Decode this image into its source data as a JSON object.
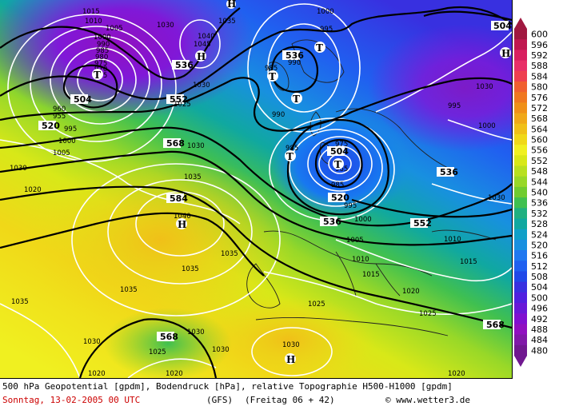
{
  "caption": {
    "line1": "500 hPa Geopotential [gpdm], Bodendruck [hPa], relative Topographie H500-H1000 [gpdm]",
    "date": "Sonntag, 13-02-2005  00 UTC",
    "model": "(GFS)",
    "forecast": "(Freitag 06 + 42)",
    "credit": "www.wetter3.de"
  },
  "legend": {
    "values": [
      "600",
      "596",
      "592",
      "588",
      "584",
      "580",
      "576",
      "572",
      "568",
      "564",
      "560",
      "556",
      "552",
      "548",
      "544",
      "540",
      "536",
      "532",
      "528",
      "524",
      "520",
      "516",
      "512",
      "508",
      "504",
      "500",
      "496",
      "492",
      "488",
      "484",
      "480"
    ],
    "colors": [
      "#a01840",
      "#c01850",
      "#d82060",
      "#e83068",
      "#ee4050",
      "#f06030",
      "#f07820",
      "#f09018",
      "#f0a818",
      "#f0c018",
      "#f0d818",
      "#f0f020",
      "#d8e818",
      "#b8e020",
      "#98d828",
      "#70cc30",
      "#40c050",
      "#20b080",
      "#10a8a0",
      "#10a0c8",
      "#1890e0",
      "#2078f0",
      "#2060f0",
      "#2048e8",
      "#3830e0",
      "#5020e0",
      "#6818d8",
      "#8010d0",
      "#9010c0",
      "#8018a8",
      "#701890"
    ]
  },
  "map": {
    "relative_topography_gpdm": [
      {
        "label": "504",
        "kind": "black"
      },
      {
        "label": "520",
        "kind": "black"
      },
      {
        "label": "536",
        "kind": "black"
      },
      {
        "label": "552",
        "kind": "black"
      },
      {
        "label": "568",
        "kind": "black"
      },
      {
        "label": "584",
        "kind": "black"
      },
      {
        "label": "568",
        "kind": "black"
      },
      {
        "label": "536",
        "kind": "black"
      },
      {
        "label": "504",
        "kind": "black"
      },
      {
        "label": "536",
        "kind": "black"
      },
      {
        "label": "536",
        "kind": "black"
      },
      {
        "label": "552",
        "kind": "black"
      },
      {
        "label": "568",
        "kind": "black"
      },
      {
        "label": "520",
        "kind": "black"
      },
      {
        "label": "504",
        "kind": "black"
      }
    ],
    "surface_pressure_hpa": [
      "1015",
      "1010",
      "1005",
      "1000",
      "990",
      "985",
      "980",
      "975",
      "970",
      "965",
      "960",
      "955",
      "995",
      "990",
      "1000",
      "1005",
      "1030",
      "1035",
      "1040",
      "1045",
      "1030",
      "1025",
      "1030",
      "1000",
      "995",
      "990",
      "985",
      "985",
      "975",
      "965",
      "985",
      "995",
      "1000",
      "1005",
      "1010",
      "1015",
      "1020",
      "1025",
      "1030",
      "1035",
      "1040",
      "1035",
      "1030",
      "1025",
      "1020",
      "1030",
      "1030",
      "1025",
      "1030",
      "1020",
      "1020",
      "1035",
      "1030",
      "1035",
      "1035",
      "1030",
      "1010",
      "1015",
      "1000",
      "995",
      "1020"
    ],
    "pressure_centers": [
      {
        "label": "T",
        "kind": "low"
      },
      {
        "label": "H",
        "kind": "high"
      },
      {
        "label": "T",
        "kind": "low"
      },
      {
        "label": "T",
        "kind": "low"
      },
      {
        "label": "T",
        "kind": "low"
      },
      {
        "label": "T",
        "kind": "low"
      },
      {
        "label": "T",
        "kind": "low"
      },
      {
        "label": "H",
        "kind": "high"
      },
      {
        "label": "H",
        "kind": "high"
      },
      {
        "label": "H",
        "kind": "high"
      },
      {
        "label": "H",
        "kind": "high"
      }
    ]
  }
}
